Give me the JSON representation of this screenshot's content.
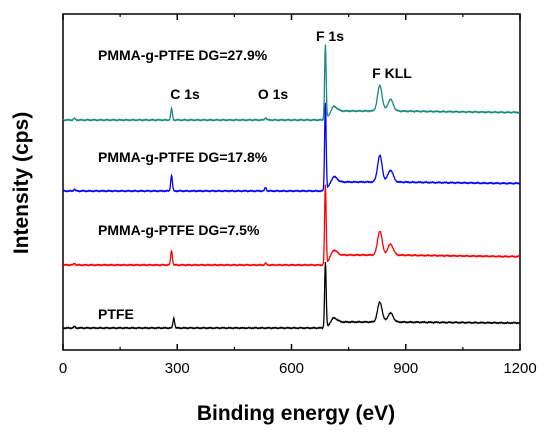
{
  "chart_data": {
    "type": "line",
    "xlabel": "Binding energy (eV)",
    "ylabel": "Intensity (cps)",
    "xlim": [
      0,
      1200
    ],
    "xticks": [
      "0",
      "300",
      "600",
      "900",
      "1200"
    ],
    "yticks_shown": false,
    "grid": false,
    "legend": "none",
    "annotations": [
      {
        "text": "C 1s",
        "x": 285
      },
      {
        "text": "O 1s",
        "x": 532
      },
      {
        "text": "F 1s",
        "x": 689
      },
      {
        "text": "F KLL",
        "x": 832
      }
    ],
    "series": [
      {
        "label": "PTFE",
        "color": "#000000",
        "peaks": [
          {
            "x": 30,
            "h": 0.02
          },
          {
            "x": 291,
            "h": 0.15
          },
          {
            "x": 689,
            "h": 1.0
          },
          {
            "x": 832,
            "h": 0.3
          }
        ]
      },
      {
        "label": "PMMA-g-PTFE DG=7.5%",
        "color": "#ff0000",
        "peaks": [
          {
            "x": 30,
            "h": 0.02
          },
          {
            "x": 285,
            "h": 0.18
          },
          {
            "x": 532,
            "h": 0.02
          },
          {
            "x": 689,
            "h": 1.0
          },
          {
            "x": 832,
            "h": 0.3
          }
        ]
      },
      {
        "label": "PMMA-g-PTFE DG=17.8%",
        "color": "#0000ff",
        "peaks": [
          {
            "x": 30,
            "h": 0.02
          },
          {
            "x": 285,
            "h": 0.18
          },
          {
            "x": 532,
            "h": 0.04
          },
          {
            "x": 689,
            "h": 1.0
          },
          {
            "x": 832,
            "h": 0.3
          }
        ]
      },
      {
        "label": "PMMA-g-PTFE DG=27.9%",
        "color": "#1a8a80",
        "peaks": [
          {
            "x": 30,
            "h": 0.02
          },
          {
            "x": 285,
            "h": 0.15
          },
          {
            "x": 532,
            "h": 0.03
          },
          {
            "x": 689,
            "h": 1.0
          },
          {
            "x": 832,
            "h": 0.34
          }
        ]
      }
    ]
  }
}
